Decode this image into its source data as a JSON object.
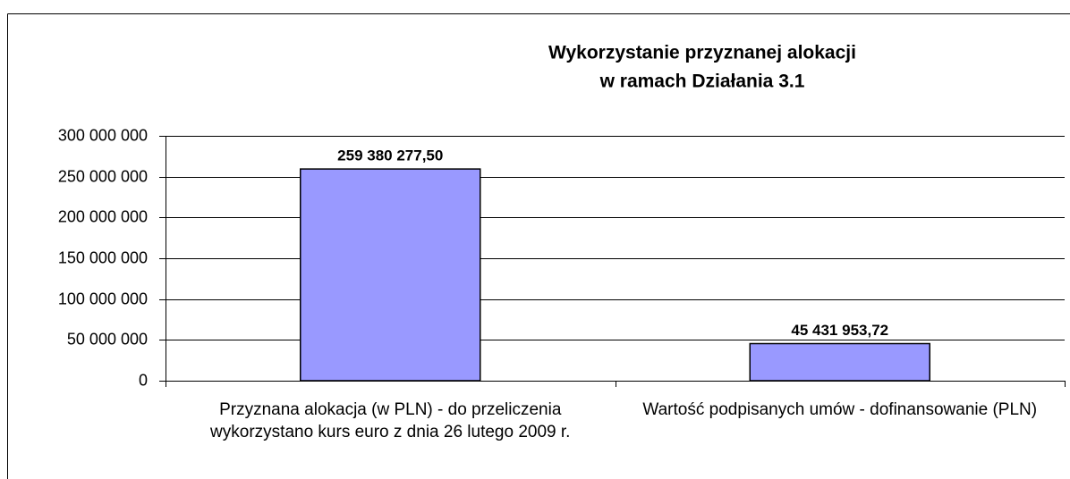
{
  "chart_data": {
    "type": "bar",
    "title": [
      "Wykorzystanie przyznanej alokacji",
      "w ramach Działania 3.1"
    ],
    "categories": [
      "Przyznana alokacja (w PLN) - do przeliczenia wykorzystano kurs euro z dnia 26 lutego 2009 r.",
      "Wartość podpisanych umów - dofinansowanie (PLN)"
    ],
    "values": [
      259380277.5,
      45431953.72
    ],
    "value_labels": [
      "259 380 277,50",
      "45 431 953,72"
    ],
    "color": "#9999ff",
    "ylim": [
      0,
      300000000
    ],
    "yticks": [
      0,
      {
        "value": 50000000,
        "label": "50 000 000"
      },
      {
        "value": 100000000,
        "label": "100 000 000"
      },
      {
        "value": 150000000,
        "label": "150 000 000"
      },
      {
        "value": 200000000,
        "label": "200 000 000"
      },
      {
        "value": 250000000,
        "label": "250 000 000"
      },
      {
        "value": 300000000,
        "label": "300 000 000"
      }
    ],
    "grid": true
  }
}
